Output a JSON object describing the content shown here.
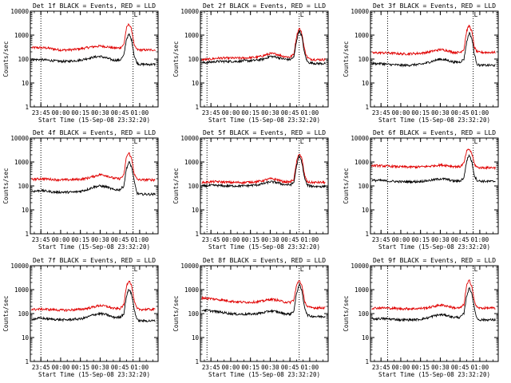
{
  "chart_data": {
    "type": "line",
    "x_unit": "time (HH:MM)",
    "y_log": true,
    "ylim": [
      1,
      10000
    ],
    "xlim": [
      "23:37",
      "01:14"
    ],
    "panel_title_suffix": " BLACK = Events, RED = LLD",
    "xlabel": "Start Time (15-Sep-08 23:32:20)",
    "ylabel": "Counts/sec",
    "x_ticks": [
      "23:45",
      "00:00",
      "00:15",
      "00:30",
      "00:45",
      "01:00"
    ],
    "y_ticks": [
      "1",
      "10",
      "100",
      "1000",
      "10000"
    ],
    "marker_text": "L",
    "colors": {
      "events": "#000000",
      "lld": "#e00000"
    },
    "x_samples": [
      "23:40",
      "23:45",
      "23:50",
      "23:55",
      "00:00",
      "00:05",
      "00:10",
      "00:15",
      "00:20",
      "00:25",
      "00:30",
      "00:35",
      "00:40",
      "00:45",
      "00:48",
      "00:50",
      "00:52",
      "00:54",
      "00:56",
      "00:58",
      "01:00",
      "01:05",
      "01:10"
    ],
    "panels": [
      {
        "title_prefix": "Det 1f",
        "vlines": [
          "23:45",
          "00:55"
        ],
        "series": [
          {
            "name": "BLACK = Events",
            "values": [
              95,
              95,
              90,
              85,
              80,
              80,
              85,
              90,
              105,
              120,
              130,
              110,
              90,
              90,
              140,
              700,
              1100,
              600,
              130,
              70,
              60,
              60,
              60
            ]
          },
          {
            "name": "RED = LLD",
            "values": [
              300,
              300,
              290,
              260,
              240,
              240,
              250,
              270,
              300,
              330,
              350,
              330,
              290,
              290,
              400,
              2000,
              3000,
              1600,
              350,
              250,
              240,
              240,
              240
            ]
          }
        ]
      },
      {
        "title_prefix": "Det 2f",
        "vlines": [
          "23:42",
          "00:52"
        ],
        "series": [
          {
            "name": "BLACK = Events",
            "values": [
              70,
              75,
              80,
              80,
              80,
              80,
              85,
              85,
              90,
              100,
              130,
              120,
              100,
              95,
              120,
              600,
              1600,
              900,
              180,
              80,
              70,
              65,
              65
            ]
          },
          {
            "name": "RED = LLD",
            "values": [
              95,
              100,
              110,
              110,
              110,
              110,
              110,
              115,
              120,
              140,
              170,
              160,
              130,
              120,
              160,
              900,
              2000,
              1200,
              260,
              120,
              100,
              95,
              95
            ]
          }
        ]
      },
      {
        "title_prefix": "Det 3f",
        "vlines": [
          "23:50",
          "00:55"
        ],
        "series": [
          {
            "name": "BLACK = Events",
            "values": [
              65,
              65,
              60,
              58,
              55,
              55,
              58,
              60,
              70,
              85,
              100,
              90,
              75,
              75,
              100,
              500,
              1300,
              700,
              150,
              60,
              55,
              55,
              55
            ]
          },
          {
            "name": "RED = LLD",
            "values": [
              180,
              185,
              180,
              175,
              165,
              165,
              170,
              175,
              190,
              220,
              250,
              230,
              190,
              190,
              260,
              1500,
              2600,
              1400,
              300,
              200,
              190,
              190,
              190
            ]
          }
        ]
      },
      {
        "title_prefix": "Det 4f",
        "vlines": [
          "23:45",
          "00:55"
        ],
        "series": [
          {
            "name": "BLACK = Events",
            "values": [
              60,
              65,
              60,
              55,
              55,
              55,
              55,
              60,
              70,
              90,
              100,
              90,
              70,
              70,
              100,
              550,
              1000,
              600,
              140,
              50,
              45,
              45,
              45
            ]
          },
          {
            "name": "RED = LLD",
            "values": [
              190,
              200,
              195,
              185,
              180,
              180,
              185,
              190,
              210,
              250,
              300,
              270,
              210,
              200,
              280,
              1700,
              2400,
              1300,
              300,
              190,
              180,
              180,
              180
            ]
          }
        ]
      },
      {
        "title_prefix": "Det 5f",
        "vlines": [
          "23:42",
          "00:52"
        ],
        "series": [
          {
            "name": "BLACK = Events",
            "values": [
              100,
              105,
              105,
              100,
              100,
              100,
              100,
              105,
              110,
              125,
              150,
              140,
              115,
              110,
              140,
              700,
              1800,
              1000,
              220,
              110,
              100,
              95,
              95
            ]
          },
          {
            "name": "RED = LLD",
            "values": [
              140,
              150,
              150,
              145,
              140,
              140,
              140,
              145,
              150,
              170,
              200,
              185,
              150,
              145,
              190,
              1000,
              2400,
              1400,
              300,
              150,
              140,
              140,
              140
            ]
          }
        ]
      },
      {
        "title_prefix": "Det 6f",
        "vlines": [
          "23:50",
          "00:55"
        ],
        "series": [
          {
            "name": "BLACK = Events",
            "values": [
              170,
              170,
              160,
              155,
              150,
              150,
              150,
              155,
              165,
              180,
              200,
              190,
              160,
              160,
              220,
              1100,
              2000,
              1000,
              260,
              170,
              160,
              155,
              155
            ]
          },
          {
            "name": "RED = LLD",
            "values": [
              700,
              690,
              670,
              650,
              630,
              620,
              620,
              630,
              650,
              700,
              750,
              720,
              650,
              640,
              900,
              2800,
              3500,
              2200,
              800,
              600,
              580,
              580,
              580
            ]
          }
        ]
      },
      {
        "title_prefix": "Det 7f",
        "vlines": [
          "23:45",
          "00:55"
        ],
        "series": [
          {
            "name": "BLACK = Events",
            "values": [
              60,
              65,
              60,
              58,
              55,
              55,
              58,
              60,
              70,
              90,
              100,
              90,
              70,
              70,
              100,
              550,
              1100,
              600,
              140,
              55,
              50,
              50,
              50
            ]
          },
          {
            "name": "RED = LLD",
            "values": [
              150,
              155,
              150,
              145,
              140,
              140,
              145,
              150,
              165,
              190,
              220,
              200,
              165,
              160,
              230,
              1500,
              2500,
              1400,
              300,
              160,
              150,
              150,
              150
            ]
          }
        ]
      },
      {
        "title_prefix": "Det 8f",
        "vlines": [
          "23:42",
          "00:52"
        ],
        "series": [
          {
            "name": "BLACK = Events",
            "values": [
              140,
              130,
              120,
              110,
              100,
              95,
              95,
              95,
              100,
              110,
              130,
              120,
              100,
              95,
              130,
              700,
              1700,
              900,
              200,
              90,
              80,
              75,
              75
            ]
          },
          {
            "name": "RED = LLD",
            "values": [
              450,
              420,
              390,
              360,
              330,
              310,
              300,
              300,
              310,
              340,
              400,
              370,
              310,
              290,
              380,
              1500,
              2600,
              1500,
              360,
              200,
              180,
              175,
              175
            ]
          }
        ]
      },
      {
        "title_prefix": "Det 9f",
        "vlines": [
          "23:50",
          "00:55"
        ],
        "series": [
          {
            "name": "BLACK = Events",
            "values": [
              60,
              62,
              60,
              58,
              55,
              55,
              55,
              58,
              65,
              80,
              90,
              85,
              70,
              70,
              100,
              550,
              1200,
              700,
              150,
              60,
              55,
              55,
              55
            ]
          },
          {
            "name": "RED = LLD",
            "values": [
              170,
              175,
              170,
              165,
              160,
              160,
              160,
              165,
              175,
              200,
              230,
              210,
              175,
              170,
              240,
              1500,
              2500,
              1400,
              300,
              180,
              170,
              170,
              170
            ]
          }
        ]
      }
    ]
  }
}
